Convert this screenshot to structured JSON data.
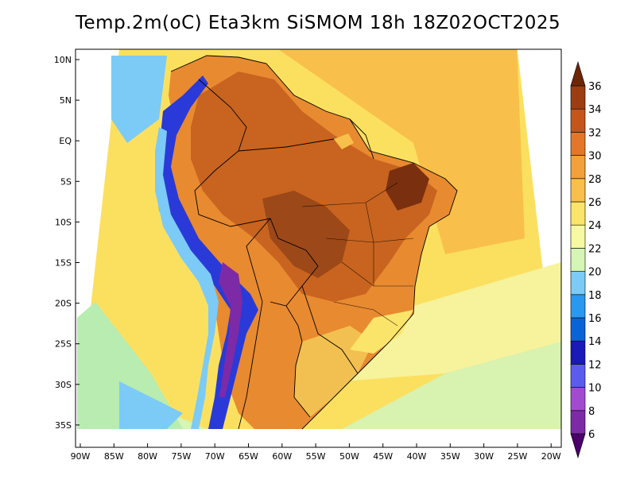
{
  "title": "Temp.2m(oC) Eta3km SiSMOM 18h 18Z02OCT2025",
  "map": {
    "variable": "2 m temperature",
    "units": "oC",
    "region": "South America",
    "lat_labels": [
      "10N",
      "5N",
      "EQ",
      "5S",
      "10S",
      "15S",
      "20S",
      "25S",
      "30S",
      "35S"
    ],
    "lon_labels": [
      "90W",
      "85W",
      "80W",
      "75W",
      "70W",
      "65W",
      "60W",
      "55W",
      "50W",
      "45W",
      "40W",
      "35W",
      "30W",
      "25W",
      "20W"
    ]
  },
  "colorbar": {
    "levels": [
      "6",
      "8",
      "10",
      "12",
      "14",
      "16",
      "18",
      "20",
      "22",
      "24",
      "26",
      "28",
      "30",
      "32",
      "34",
      "36"
    ],
    "colors": [
      "#4a006a",
      "#7d2aa7",
      "#a24ad0",
      "#5a5cf0",
      "#1a1ab8",
      "#0a64d8",
      "#2a98ee",
      "#7ccaf6",
      "#d4f5b4",
      "#f6f8a2",
      "#fbe46a",
      "#f8c04a",
      "#f2a03a",
      "#e2772a",
      "#c4561c",
      "#9c3d12",
      "#6e2608"
    ]
  }
}
